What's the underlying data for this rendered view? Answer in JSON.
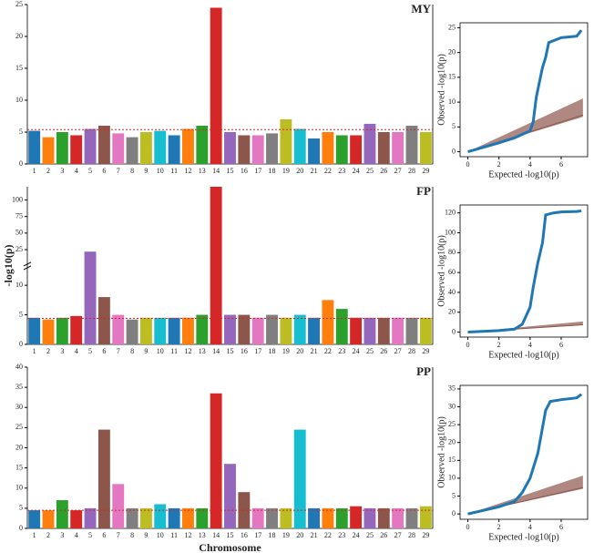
{
  "chart_data": [
    {
      "type": "manhattan",
      "title": "MY",
      "categories": [
        "1",
        "2",
        "3",
        "4",
        "5",
        "6",
        "7",
        "8",
        "9",
        "10",
        "11",
        "12",
        "13",
        "14",
        "15",
        "16",
        "17",
        "18",
        "19",
        "20",
        "21",
        "22",
        "23",
        "24",
        "25",
        "26",
        "27",
        "28",
        "29"
      ],
      "values": [
        5.2,
        4.2,
        5,
        4.5,
        5.5,
        6,
        4.8,
        4.2,
        5,
        5.2,
        4.5,
        5.5,
        6,
        24.5,
        5,
        4.5,
        4.5,
        4.8,
        7,
        5.5,
        4,
        5,
        4.5,
        4.5,
        6.3,
        5,
        5,
        6,
        5
      ],
      "palette": [
        "#1f77b4",
        "#ff7f0e",
        "#2ca02c",
        "#d62728",
        "#9467bd",
        "#8c564b",
        "#e377c2",
        "#7f7f7f",
        "#bcbd22",
        "#17becf"
      ],
      "threshold": 5.4,
      "threshold_color": "#d62728",
      "ylim": [
        0,
        25
      ],
      "yticks": [
        0,
        5,
        10,
        15,
        20,
        25
      ]
    },
    {
      "type": "qq",
      "xlabel": "Expected -log10(p)",
      "ylabel": "Observed -log10(p)",
      "x": [
        0,
        1,
        2,
        3,
        4,
        4.2,
        4.4,
        4.6,
        4.8,
        5,
        5.2,
        6,
        7,
        7.3
      ],
      "values": [
        0,
        0.9,
        1.8,
        2.8,
        4.2,
        6,
        11,
        14,
        17,
        19,
        22,
        23,
        23.3,
        24.5
      ],
      "color": "#1f77b4",
      "expected_color": "#8c564b",
      "xlim": [
        -0.5,
        7.7
      ],
      "xticks": [
        0,
        2,
        4,
        6
      ],
      "ylim": [
        -1,
        26
      ],
      "yticks": [
        0,
        5,
        10,
        15,
        20,
        25
      ]
    },
    {
      "type": "manhattan",
      "title": "FP",
      "ylabel": "-log10(p)",
      "categories": [
        "1",
        "2",
        "3",
        "4",
        "5",
        "6",
        "7",
        "8",
        "9",
        "10",
        "11",
        "12",
        "13",
        "14",
        "15",
        "16",
        "17",
        "18",
        "19",
        "20",
        "21",
        "22",
        "23",
        "24",
        "25",
        "26",
        "27",
        "28",
        "29"
      ],
      "values": [
        4.5,
        4.2,
        4.5,
        4.8,
        22,
        8,
        5,
        4.2,
        4.5,
        4.5,
        4.5,
        4.5,
        5,
        120,
        5,
        5,
        4.5,
        5,
        4.5,
        5,
        4.5,
        7.5,
        6,
        4.5,
        4.5,
        4.5,
        4.5,
        4.5,
        4.5
      ],
      "palette": [
        "#1f77b4",
        "#ff7f0e",
        "#2ca02c",
        "#d62728",
        "#9467bd",
        "#8c564b",
        "#e377c2",
        "#7f7f7f",
        "#bcbd22",
        "#17becf"
      ],
      "threshold": 4.4,
      "threshold_color": "#d62728",
      "ylim": [
        0,
        120
      ],
      "ybreak": [
        12,
        20
      ],
      "yticks": [
        0,
        5,
        10,
        25,
        50,
        75,
        100
      ]
    },
    {
      "type": "qq",
      "xlabel": "Expected -log10(p)",
      "ylabel": "Observed -log10(p)",
      "x": [
        0,
        2,
        3,
        3.5,
        4,
        4.2,
        4.5,
        4.8,
        5,
        5.5,
        6,
        7,
        7.3
      ],
      "values": [
        0,
        1.5,
        3,
        8,
        25,
        45,
        70,
        90,
        118,
        120,
        121,
        121.5,
        122
      ],
      "color": "#1f77b4",
      "expected_color": "#8c564b",
      "xlim": [
        -0.5,
        7.7
      ],
      "xticks": [
        0,
        2,
        4,
        6
      ],
      "ylim": [
        -5,
        128
      ],
      "yticks": [
        0,
        20,
        40,
        60,
        80,
        100,
        120
      ]
    },
    {
      "type": "manhattan",
      "title": "PP",
      "xlabel": "Chromosome",
      "categories": [
        "1",
        "2",
        "3",
        "4",
        "5",
        "6",
        "7",
        "8",
        "9",
        "10",
        "11",
        "12",
        "13",
        "14",
        "15",
        "16",
        "17",
        "18",
        "19",
        "20",
        "21",
        "22",
        "23",
        "24",
        "25",
        "26",
        "27",
        "28",
        "29"
      ],
      "values": [
        4.5,
        4.5,
        7,
        4.5,
        5,
        24.5,
        11,
        5,
        5,
        6,
        5,
        5,
        5,
        33.5,
        16,
        9,
        5,
        5,
        5,
        24.5,
        5,
        5,
        5,
        5.5,
        5,
        5,
        5,
        5,
        5.5
      ],
      "palette": [
        "#1f77b4",
        "#ff7f0e",
        "#2ca02c",
        "#d62728",
        "#9467bd",
        "#8c564b",
        "#e377c2",
        "#7f7f7f",
        "#bcbd22",
        "#17becf"
      ],
      "threshold": 4.5,
      "threshold_color": "#d62728",
      "ylim": [
        0,
        40
      ],
      "yticks": [
        0,
        5,
        10,
        15,
        20,
        25,
        30,
        35,
        40
      ]
    },
    {
      "type": "qq",
      "xlabel": "Expected -log10(p)",
      "ylabel": "Observed -log10(p)",
      "x": [
        0,
        2,
        3,
        3.5,
        4,
        4.5,
        5,
        5.3,
        6,
        7,
        7.3
      ],
      "values": [
        0,
        2,
        3.5,
        6,
        10,
        17,
        29,
        31.5,
        32,
        32.5,
        33.5
      ],
      "color": "#1f77b4",
      "expected_color": "#8c564b",
      "xlim": [
        -0.5,
        7.7
      ],
      "xticks": [
        0,
        2,
        4,
        6
      ],
      "ylim": [
        -1.5,
        36
      ],
      "yticks": [
        0,
        5,
        10,
        15,
        20,
        25,
        30,
        35
      ]
    }
  ]
}
